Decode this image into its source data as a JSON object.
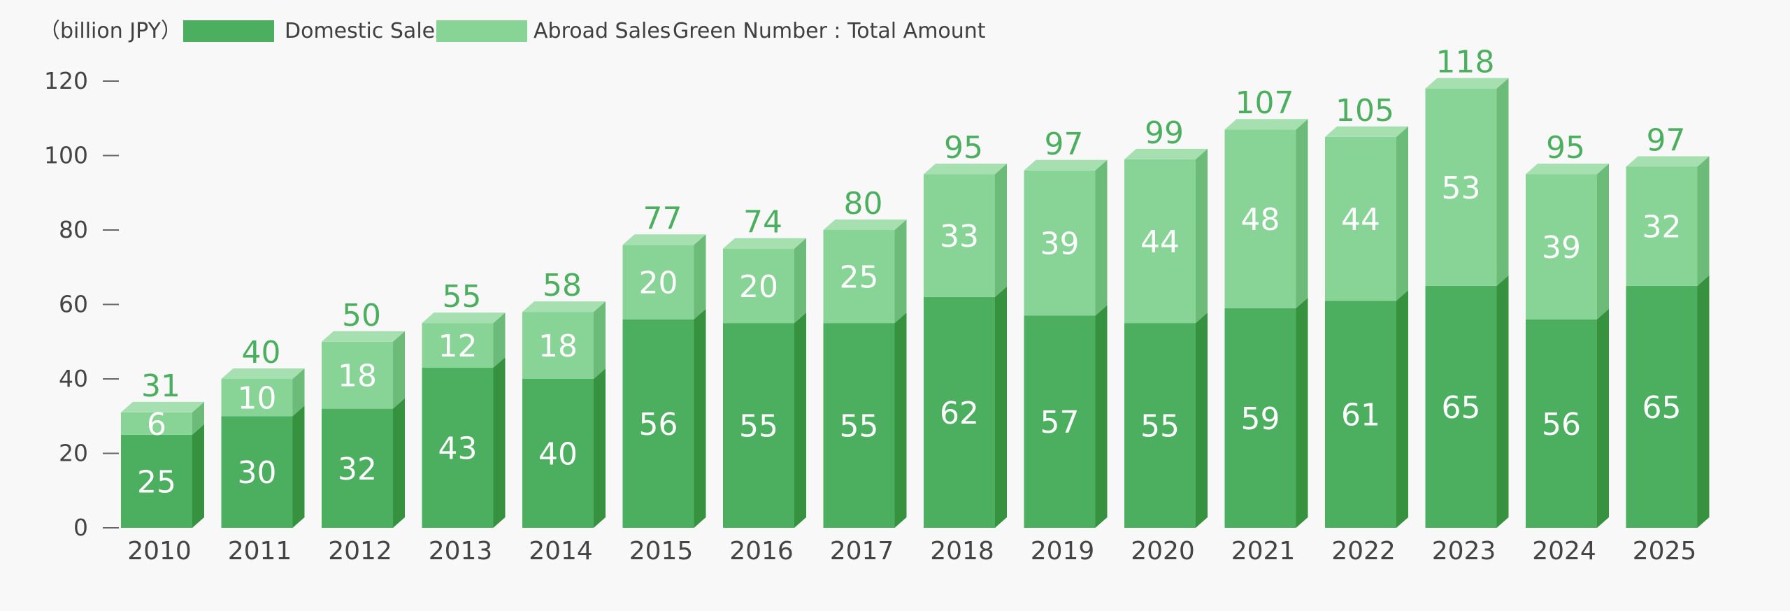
{
  "chart_data": {
    "type": "bar",
    "stacked": true,
    "unit_label": "（billion JPY）",
    "note": "Green Number : Total Amount",
    "categories": [
      "2010",
      "2011",
      "2012",
      "2013",
      "2014",
      "2015",
      "2016",
      "2017",
      "2018",
      "2019",
      "2020",
      "2021",
      "2022",
      "2023",
      "2024",
      "2025"
    ],
    "series": [
      {
        "name": "Domestic Sales",
        "values": [
          25,
          30,
          32,
          43,
          40,
          56,
          55,
          55,
          62,
          57,
          55,
          59,
          61,
          65,
          56,
          65
        ]
      },
      {
        "name": "Abroad Sales",
        "values": [
          6,
          10,
          18,
          12,
          18,
          20,
          20,
          25,
          33,
          39,
          44,
          48,
          44,
          53,
          39,
          32
        ]
      }
    ],
    "totals": [
      31,
      40,
      50,
      55,
      58,
      77,
      74,
      80,
      95,
      97,
      99,
      107,
      105,
      118,
      95,
      97
    ],
    "yticks": [
      "0",
      "20",
      "40",
      "60",
      "80",
      "100",
      "120"
    ],
    "ylim": [
      0,
      120
    ],
    "grid": false,
    "legend_position": "top-left",
    "colors": {
      "domestic_front": "#4caf5f",
      "domestic_side": "#37923f",
      "abroad_front": "#88d396",
      "abroad_side": "#6cbb78",
      "top_face": "#a6e0b0",
      "total_text": "#4caf5f",
      "axis": "#666666"
    }
  }
}
